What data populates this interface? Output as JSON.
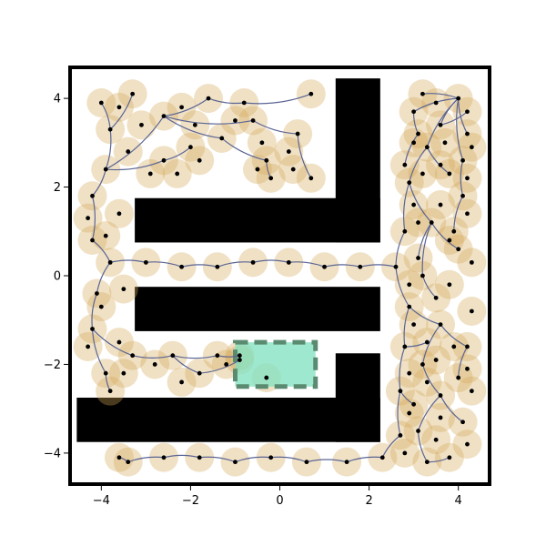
{
  "chart_data": {
    "type": "scatter",
    "xlim": [
      -4.7,
      4.7
    ],
    "ylim": [
      -4.7,
      4.7
    ],
    "x_ticks": [
      -4,
      -2,
      0,
      2,
      4
    ],
    "y_ticks": [
      -4,
      -2,
      0,
      2,
      4
    ],
    "x_tick_labels": [
      "−4",
      "−2",
      "0",
      "2",
      "4"
    ],
    "y_tick_labels": [
      "−4",
      "−2",
      "0",
      "2",
      "4"
    ],
    "grid": false,
    "colors": {
      "obstacle": "#000000",
      "goal_fill": "#7fe0c0",
      "goal_edge": "#5a8a70",
      "node_halo": "#d4a85a",
      "edge": "#5b6594",
      "node": "#000000",
      "frame": "#000000"
    },
    "obstacles": [
      {
        "x0": 1.25,
        "x1": 2.25,
        "y0": 0.75,
        "y1": 4.45
      },
      {
        "x0": -3.25,
        "x1": 2.25,
        "y0": 0.75,
        "y1": 1.75
      },
      {
        "x0": -3.25,
        "x1": 2.25,
        "y0": -1.25,
        "y1": -0.25
      },
      {
        "x0": 1.25,
        "x1": 2.25,
        "y0": -3.75,
        "y1": -1.75
      },
      {
        "x0": -4.55,
        "x1": 2.25,
        "y0": -3.75,
        "y1": -2.75
      }
    ],
    "goal_region": {
      "x0": -1.0,
      "x1": 0.8,
      "y0": -2.5,
      "y1": -1.5
    },
    "tree_edges": [
      [
        [
          4.0,
          4.0
        ],
        [
          3.2,
          4.1
        ]
      ],
      [
        [
          4.0,
          4.0
        ],
        [
          3.0,
          3.7
        ]
      ],
      [
        [
          4.0,
          4.0
        ],
        [
          3.6,
          3.4
        ]
      ],
      [
        [
          4.0,
          4.0
        ],
        [
          4.2,
          3.2
        ]
      ],
      [
        [
          4.0,
          4.0
        ],
        [
          3.3,
          2.9
        ]
      ],
      [
        [
          4.0,
          4.0
        ],
        [
          4.1,
          2.6
        ]
      ],
      [
        [
          3.3,
          2.9
        ],
        [
          2.9,
          2.1
        ]
      ],
      [
        [
          3.3,
          2.9
        ],
        [
          3.8,
          2.3
        ]
      ],
      [
        [
          2.9,
          2.1
        ],
        [
          2.8,
          1.0
        ]
      ],
      [
        [
          2.9,
          2.1
        ],
        [
          3.4,
          1.2
        ]
      ],
      [
        [
          3.4,
          1.2
        ],
        [
          4.0,
          0.6
        ]
      ],
      [
        [
          3.4,
          1.2
        ],
        [
          3.1,
          0.4
        ]
      ],
      [
        [
          2.8,
          1.0
        ],
        [
          2.6,
          0.2
        ]
      ],
      [
        [
          2.6,
          0.2
        ],
        [
          1.8,
          0.2
        ]
      ],
      [
        [
          1.8,
          0.2
        ],
        [
          1.0,
          0.2
        ]
      ],
      [
        [
          1.0,
          0.2
        ],
        [
          0.2,
          0.3
        ]
      ],
      [
        [
          0.2,
          0.3
        ],
        [
          -0.6,
          0.3
        ]
      ],
      [
        [
          -0.6,
          0.3
        ],
        [
          -1.4,
          0.2
        ]
      ],
      [
        [
          -1.4,
          0.2
        ],
        [
          -2.2,
          0.2
        ]
      ],
      [
        [
          -2.2,
          0.2
        ],
        [
          -3.0,
          0.3
        ]
      ],
      [
        [
          -3.0,
          0.3
        ],
        [
          -3.8,
          0.3
        ]
      ],
      [
        [
          -3.8,
          0.3
        ],
        [
          -4.2,
          0.8
        ]
      ],
      [
        [
          -3.8,
          0.3
        ],
        [
          -4.1,
          -0.4
        ]
      ],
      [
        [
          -4.2,
          0.8
        ],
        [
          -4.2,
          1.8
        ]
      ],
      [
        [
          -4.2,
          1.8
        ],
        [
          -3.9,
          2.4
        ]
      ],
      [
        [
          -3.9,
          2.4
        ],
        [
          -3.8,
          3.3
        ]
      ],
      [
        [
          -3.8,
          3.3
        ],
        [
          -4.0,
          3.9
        ]
      ],
      [
        [
          -3.8,
          3.3
        ],
        [
          -3.3,
          4.1
        ]
      ],
      [
        [
          -3.9,
          2.4
        ],
        [
          -2.6,
          3.6
        ]
      ],
      [
        [
          -2.6,
          3.6
        ],
        [
          -1.6,
          4.0
        ]
      ],
      [
        [
          -1.6,
          4.0
        ],
        [
          -0.8,
          3.9
        ]
      ],
      [
        [
          -2.6,
          3.6
        ],
        [
          -1.3,
          3.1
        ]
      ],
      [
        [
          -1.3,
          3.1
        ],
        [
          -0.3,
          2.6
        ]
      ],
      [
        [
          -0.3,
          2.6
        ],
        [
          -0.2,
          2.2
        ]
      ],
      [
        [
          -2.6,
          3.6
        ],
        [
          -0.6,
          3.5
        ]
      ],
      [
        [
          -0.6,
          3.5
        ],
        [
          0.4,
          3.2
        ]
      ],
      [
        [
          0.4,
          3.2
        ],
        [
          0.7,
          2.2
        ]
      ],
      [
        [
          -0.8,
          3.9
        ],
        [
          0.7,
          4.1
        ]
      ],
      [
        [
          -3.9,
          2.4
        ],
        [
          -2.6,
          2.6
        ]
      ],
      [
        [
          -2.6,
          2.6
        ],
        [
          -2.0,
          2.9
        ]
      ],
      [
        [
          -4.1,
          -0.4
        ],
        [
          -4.2,
          -1.2
        ]
      ],
      [
        [
          -4.2,
          -1.2
        ],
        [
          -3.9,
          -2.2
        ]
      ],
      [
        [
          -3.9,
          -2.2
        ],
        [
          -3.8,
          -2.6
        ]
      ],
      [
        [
          -4.2,
          -1.2
        ],
        [
          -3.3,
          -1.8
        ]
      ],
      [
        [
          -3.3,
          -1.8
        ],
        [
          -2.4,
          -1.8
        ]
      ],
      [
        [
          -2.4,
          -1.8
        ],
        [
          -1.4,
          -1.8
        ]
      ],
      [
        [
          -1.4,
          -1.8
        ],
        [
          -0.9,
          -1.8
        ]
      ],
      [
        [
          -2.4,
          -1.8
        ],
        [
          -1.8,
          -2.2
        ]
      ],
      [
        [
          -1.8,
          -2.2
        ],
        [
          -0.9,
          -1.9
        ]
      ],
      [
        [
          2.6,
          0.2
        ],
        [
          2.9,
          -0.7
        ]
      ],
      [
        [
          2.9,
          -0.7
        ],
        [
          2.8,
          -1.6
        ]
      ],
      [
        [
          2.8,
          -1.6
        ],
        [
          2.7,
          -2.6
        ]
      ],
      [
        [
          2.7,
          -2.6
        ],
        [
          2.7,
          -3.6
        ]
      ],
      [
        [
          2.7,
          -3.6
        ],
        [
          2.3,
          -4.1
        ]
      ],
      [
        [
          2.9,
          -0.7
        ],
        [
          3.6,
          -1.1
        ]
      ],
      [
        [
          3.6,
          -1.1
        ],
        [
          4.2,
          -1.6
        ]
      ],
      [
        [
          3.6,
          -1.1
        ],
        [
          3.2,
          -2.0
        ]
      ],
      [
        [
          3.2,
          -2.0
        ],
        [
          3.6,
          -2.7
        ]
      ],
      [
        [
          3.6,
          -2.7
        ],
        [
          4.1,
          -3.3
        ]
      ],
      [
        [
          3.6,
          -2.7
        ],
        [
          3.1,
          -3.5
        ]
      ],
      [
        [
          3.1,
          -3.5
        ],
        [
          3.3,
          -4.2
        ]
      ],
      [
        [
          3.3,
          -4.2
        ],
        [
          3.8,
          -4.1
        ]
      ],
      [
        [
          2.3,
          -4.1
        ],
        [
          1.5,
          -4.2
        ]
      ],
      [
        [
          1.5,
          -4.2
        ],
        [
          0.6,
          -4.2
        ]
      ],
      [
        [
          0.6,
          -4.2
        ],
        [
          -0.2,
          -4.1
        ]
      ],
      [
        [
          -0.2,
          -4.1
        ],
        [
          -1.0,
          -4.2
        ]
      ],
      [
        [
          -1.0,
          -4.2
        ],
        [
          -1.8,
          -4.1
        ]
      ],
      [
        [
          -1.8,
          -4.1
        ],
        [
          -2.6,
          -4.1
        ]
      ],
      [
        [
          -2.6,
          -4.1
        ],
        [
          -3.4,
          -4.2
        ]
      ],
      [
        [
          -3.4,
          -4.2
        ],
        [
          -3.6,
          -4.1
        ]
      ],
      [
        [
          3.0,
          3.7
        ],
        [
          3.1,
          3.2
        ]
      ],
      [
        [
          3.1,
          3.2
        ],
        [
          2.8,
          2.5
        ]
      ],
      [
        [
          3.6,
          3.4
        ],
        [
          4.2,
          3.7
        ]
      ],
      [
        [
          4.1,
          2.6
        ],
        [
          4.1,
          1.8
        ]
      ],
      [
        [
          4.1,
          1.8
        ],
        [
          3.9,
          1.0
        ]
      ],
      [
        [
          3.4,
          1.2
        ],
        [
          3.2,
          0.0
        ]
      ],
      [
        [
          3.2,
          0.0
        ],
        [
          3.5,
          -0.5
        ]
      ],
      [
        [
          2.8,
          -1.6
        ],
        [
          3.3,
          -1.5
        ]
      ],
      [
        [
          2.7,
          -2.6
        ],
        [
          3.0,
          -2.9
        ]
      ],
      [
        [
          4.2,
          -1.6
        ],
        [
          4.0,
          -2.3
        ]
      ]
    ],
    "nodes": [
      [
        4.0,
        4.0
      ],
      [
        3.2,
        4.1
      ],
      [
        3.0,
        3.7
      ],
      [
        3.6,
        3.4
      ],
      [
        4.2,
        3.2
      ],
      [
        3.3,
        2.9
      ],
      [
        4.1,
        2.6
      ],
      [
        2.9,
        2.1
      ],
      [
        3.8,
        2.3
      ],
      [
        2.8,
        1.0
      ],
      [
        3.4,
        1.2
      ],
      [
        4.0,
        0.6
      ],
      [
        3.1,
        0.4
      ],
      [
        2.6,
        0.2
      ],
      [
        1.8,
        0.2
      ],
      [
        1.0,
        0.2
      ],
      [
        0.2,
        0.3
      ],
      [
        -0.6,
        0.3
      ],
      [
        -1.4,
        0.2
      ],
      [
        -2.2,
        0.2
      ],
      [
        -3.0,
        0.3
      ],
      [
        -3.8,
        0.3
      ],
      [
        -4.2,
        0.8
      ],
      [
        -4.1,
        -0.4
      ],
      [
        -4.2,
        1.8
      ],
      [
        -3.9,
        2.4
      ],
      [
        -3.8,
        3.3
      ],
      [
        -4.0,
        3.9
      ],
      [
        -3.3,
        4.1
      ],
      [
        -2.6,
        3.6
      ],
      [
        -1.6,
        4.0
      ],
      [
        -0.8,
        3.9
      ],
      [
        -1.3,
        3.1
      ],
      [
        -0.3,
        2.6
      ],
      [
        -0.2,
        2.2
      ],
      [
        -0.6,
        3.5
      ],
      [
        0.4,
        3.2
      ],
      [
        0.7,
        2.2
      ],
      [
        0.7,
        4.1
      ],
      [
        -2.6,
        2.6
      ],
      [
        -2.0,
        2.9
      ],
      [
        -4.2,
        -1.2
      ],
      [
        -3.9,
        -2.2
      ],
      [
        -3.8,
        -2.6
      ],
      [
        -3.3,
        -1.8
      ],
      [
        -2.4,
        -1.8
      ],
      [
        -1.4,
        -1.8
      ],
      [
        -0.9,
        -1.8
      ],
      [
        -1.8,
        -2.2
      ],
      [
        -0.9,
        -1.9
      ],
      [
        2.9,
        -0.7
      ],
      [
        2.8,
        -1.6
      ],
      [
        2.7,
        -2.6
      ],
      [
        2.7,
        -3.6
      ],
      [
        2.3,
        -4.1
      ],
      [
        3.6,
        -1.1
      ],
      [
        4.2,
        -1.6
      ],
      [
        3.2,
        -2.0
      ],
      [
        3.6,
        -2.7
      ],
      [
        4.1,
        -3.3
      ],
      [
        3.1,
        -3.5
      ],
      [
        3.3,
        -4.2
      ],
      [
        3.8,
        -4.1
      ],
      [
        1.5,
        -4.2
      ],
      [
        0.6,
        -4.2
      ],
      [
        -0.2,
        -4.1
      ],
      [
        -1.0,
        -4.2
      ],
      [
        -1.8,
        -4.1
      ],
      [
        -2.6,
        -4.1
      ],
      [
        -3.4,
        -4.2
      ],
      [
        -3.6,
        -4.1
      ],
      [
        3.1,
        3.2
      ],
      [
        2.8,
        2.5
      ],
      [
        4.2,
        3.7
      ],
      [
        4.1,
        1.8
      ],
      [
        3.9,
        1.0
      ],
      [
        3.2,
        0.0
      ],
      [
        3.5,
        -0.5
      ],
      [
        3.3,
        -1.5
      ],
      [
        3.0,
        -2.9
      ],
      [
        4.0,
        -2.3
      ],
      [
        -3.6,
        3.8
      ],
      [
        -3.1,
        3.4
      ],
      [
        -2.2,
        3.8
      ],
      [
        -1.9,
        3.4
      ],
      [
        -1.0,
        3.5
      ],
      [
        -0.4,
        3.0
      ],
      [
        0.2,
        2.8
      ],
      [
        -3.4,
        2.8
      ],
      [
        -2.9,
        2.3
      ],
      [
        -2.3,
        2.3
      ],
      [
        -1.8,
        2.6
      ],
      [
        -0.5,
        2.4
      ],
      [
        0.3,
        2.4
      ],
      [
        -4.3,
        1.3
      ],
      [
        -3.6,
        1.4
      ],
      [
        -3.9,
        0.9
      ],
      [
        -3.5,
        -0.3
      ],
      [
        -4.0,
        -0.7
      ],
      [
        -4.3,
        -1.6
      ],
      [
        -3.6,
        -1.5
      ],
      [
        -3.5,
        -2.2
      ],
      [
        -2.8,
        -2.0
      ],
      [
        -2.2,
        -2.4
      ],
      [
        -1.2,
        -2.0
      ],
      [
        -0.3,
        -2.3
      ],
      [
        3.5,
        3.9
      ],
      [
        3.0,
        3.0
      ],
      [
        3.7,
        3.0
      ],
      [
        4.3,
        2.9
      ],
      [
        3.6,
        2.5
      ],
      [
        3.2,
        2.3
      ],
      [
        4.2,
        2.2
      ],
      [
        3.0,
        1.6
      ],
      [
        3.6,
        1.6
      ],
      [
        4.2,
        1.4
      ],
      [
        3.1,
        1.2
      ],
      [
        3.8,
        0.8
      ],
      [
        4.3,
        0.3
      ],
      [
        2.9,
        -0.2
      ],
      [
        3.8,
        -0.2
      ],
      [
        4.3,
        -0.8
      ],
      [
        3.0,
        -1.1
      ],
      [
        3.9,
        -1.6
      ],
      [
        3.5,
        -1.9
      ],
      [
        4.2,
        -2.1
      ],
      [
        2.9,
        -2.2
      ],
      [
        3.3,
        -2.4
      ],
      [
        4.3,
        -2.6
      ],
      [
        2.9,
        -3.1
      ],
      [
        3.6,
        -3.2
      ],
      [
        4.2,
        -3.8
      ],
      [
        2.8,
        -4.0
      ],
      [
        3.5,
        -3.7
      ]
    ]
  }
}
